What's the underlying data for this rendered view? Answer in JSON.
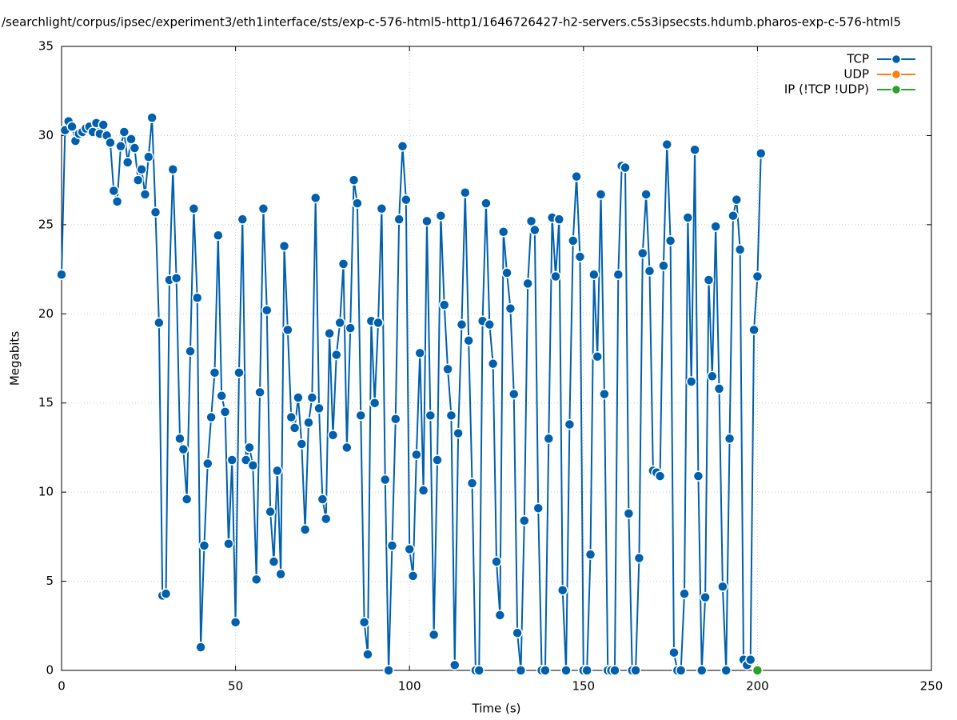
{
  "chart_data": {
    "type": "line",
    "title": "/searchlight/corpus/ipsec/experiment3/eth1interface/sts/exp-c-576-html5-http1/1646726427-h2-servers.c5s3ipsecsts.hdumb.pharos-exp-c-576-html5",
    "x_label": "Time (s)",
    "y_label": "Megabits",
    "xlim": [
      0,
      250
    ],
    "xticks": [
      0,
      50,
      100,
      150,
      200,
      250
    ],
    "ylim": [
      0,
      35
    ],
    "yticks": [
      0,
      5,
      10,
      15,
      20,
      25,
      30,
      35
    ],
    "grid": true,
    "legend": "top-right",
    "series": [
      {
        "name": "TCP",
        "color": "#0060ad",
        "x": [
          0,
          1,
          2,
          3,
          4,
          5,
          6,
          7,
          8,
          9,
          10,
          11,
          12,
          13,
          14,
          15,
          16,
          17,
          18,
          19,
          20,
          21,
          22,
          23,
          24,
          25,
          26,
          27,
          28,
          29,
          30,
          31,
          32,
          33,
          34,
          35,
          36,
          37,
          38,
          39,
          40,
          41,
          42,
          43,
          44,
          45,
          46,
          47,
          48,
          49,
          50,
          51,
          52,
          53,
          54,
          55,
          56,
          57,
          58,
          59,
          60,
          61,
          62,
          63,
          64,
          65,
          66,
          67,
          68,
          69,
          70,
          71,
          72,
          73,
          74,
          75,
          76,
          77,
          78,
          79,
          80,
          81,
          82,
          83,
          84,
          85,
          86,
          87,
          88,
          89,
          90,
          91,
          92,
          93,
          94,
          95,
          96,
          97,
          98,
          99,
          100,
          101,
          102,
          103,
          104,
          105,
          106,
          107,
          108,
          109,
          110,
          111,
          112,
          113,
          114,
          115,
          116,
          117,
          118,
          119,
          120,
          121,
          122,
          123,
          124,
          125,
          126,
          127,
          128,
          129,
          130,
          131,
          132,
          133,
          134,
          135,
          136,
          137,
          138,
          139,
          140,
          141,
          142,
          143,
          144,
          145,
          146,
          147,
          148,
          149,
          150,
          151,
          152,
          153,
          154,
          155,
          156,
          157,
          158,
          159,
          160,
          161,
          162,
          163,
          164,
          165,
          166,
          167,
          168,
          169,
          170,
          171,
          172,
          173,
          174,
          175,
          176,
          177,
          178,
          179,
          180,
          181,
          182,
          183,
          184,
          185,
          186,
          187,
          188,
          189,
          190,
          191,
          192,
          193,
          194,
          195,
          196,
          197,
          198,
          199,
          200,
          201
        ],
        "values": [
          22.2,
          30.3,
          30.8,
          30.5,
          29.7,
          30.1,
          30.2,
          30.4,
          30.5,
          30.2,
          30.7,
          30.1,
          30.6,
          30.0,
          29.6,
          26.9,
          26.3,
          29.4,
          30.2,
          28.5,
          29.8,
          29.3,
          27.5,
          28.1,
          26.7,
          28.8,
          31.0,
          25.7,
          19.5,
          4.2,
          4.3,
          21.9,
          28.1,
          22.0,
          13.0,
          12.4,
          9.6,
          17.9,
          25.9,
          20.9,
          1.3,
          7.0,
          11.6,
          14.2,
          16.7,
          24.4,
          15.4,
          14.5,
          7.1,
          11.8,
          2.7,
          16.7,
          25.3,
          11.8,
          12.5,
          11.5,
          5.1,
          15.6,
          25.9,
          20.2,
          8.9,
          6.1,
          11.2,
          5.4,
          23.8,
          19.1,
          14.2,
          13.6,
          15.3,
          12.7,
          7.9,
          13.9,
          15.3,
          26.5,
          14.7,
          9.6,
          8.5,
          18.9,
          13.2,
          17.7,
          19.5,
          22.8,
          12.5,
          19.2,
          27.5,
          26.2,
          14.3,
          2.7,
          0.9,
          19.6,
          15.0,
          19.5,
          25.9,
          10.7,
          0,
          7.0,
          14.1,
          25.3,
          29.4,
          26.4,
          6.8,
          5.3,
          12.1,
          17.8,
          10.1,
          25.2,
          14.3,
          2.0,
          11.8,
          25.5,
          20.5,
          16.9,
          14.3,
          0.3,
          13.3,
          19.4,
          26.8,
          18.5,
          10.5,
          0,
          0,
          19.6,
          26.2,
          19.4,
          17.2,
          6.1,
          3.1,
          24.6,
          22.3,
          20.3,
          15.5,
          2.1,
          0,
          8.4,
          21.7,
          25.2,
          24.7,
          9.1,
          0,
          0,
          13.0,
          25.4,
          22.1,
          25.3,
          4.5,
          0,
          13.8,
          24.1,
          27.7,
          23.2,
          0,
          0,
          6.5,
          22.2,
          17.6,
          26.7,
          15.5,
          0,
          0,
          0,
          22.2,
          28.3,
          28.2,
          8.8,
          0,
          0,
          6.3,
          23.4,
          26.7,
          22.4,
          11.2,
          11.1,
          10.9,
          22.7,
          29.5,
          24.1,
          1.0,
          0,
          0,
          4.3,
          25.4,
          16.2,
          29.2,
          10.9,
          0,
          4.1,
          21.9,
          16.5,
          24.9,
          15.8,
          4.7,
          0,
          13.0,
          25.5,
          26.4,
          23.6,
          0.6,
          0.3,
          0.6,
          19.1,
          22.1,
          29.0
        ]
      },
      {
        "name": "UDP",
        "color": "#ff7f0e",
        "x": [],
        "values": []
      },
      {
        "name": "IP (!TCP  !UDP)",
        "color": "#2ca02c",
        "x": [
          200
        ],
        "values": [
          0
        ]
      }
    ]
  }
}
